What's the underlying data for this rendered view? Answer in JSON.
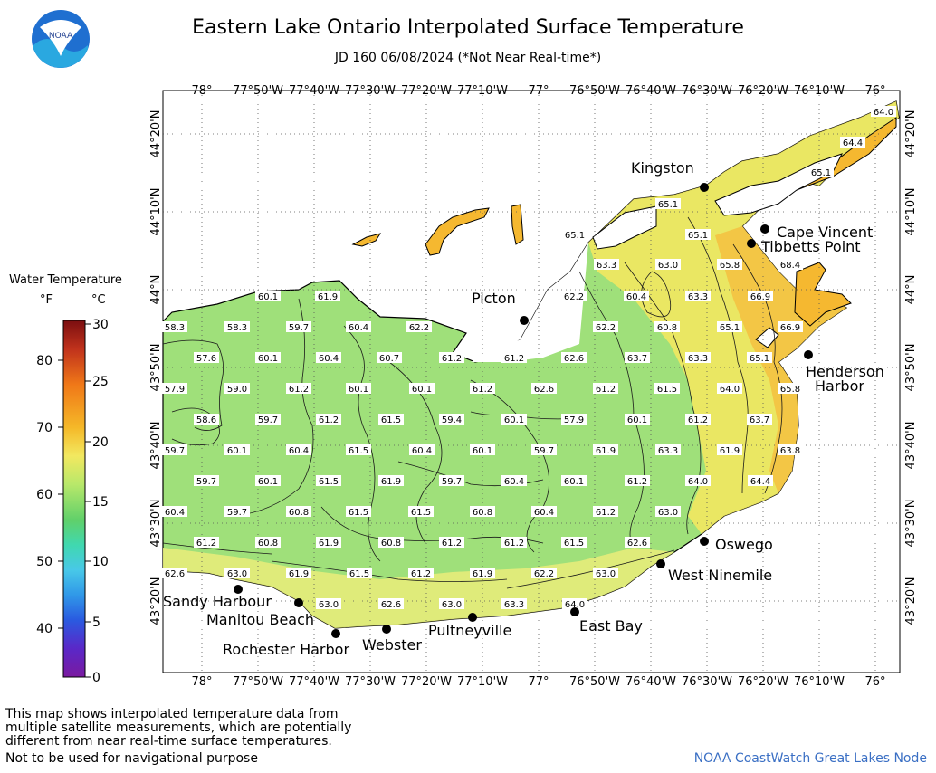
{
  "header": {
    "title": "Eastern Lake Ontario Interpolated Surface Temperature",
    "subtitle": "JD 160 06/08/2024 (*Not Near Real-time*)",
    "logo_text": "NOAA"
  },
  "legend": {
    "title": "Water Temperature",
    "unit_f": "°F",
    "unit_c": "°C",
    "f_ticks": [
      "80",
      "70",
      "60",
      "50",
      "40"
    ],
    "c_ticks": [
      "30",
      "25",
      "20",
      "15",
      "10",
      "5",
      "0"
    ],
    "colors": [
      "#7b0e10",
      "#c0321c",
      "#f07818",
      "#f5b828",
      "#f2e860",
      "#b8e86a",
      "#60d06a",
      "#40d8b0",
      "#48c8e8",
      "#3098e8",
      "#2a5ae0",
      "#5a28c8",
      "#7a1aa0"
    ]
  },
  "axes": {
    "lon_labels": [
      "78°",
      "77°50'W",
      "77°40'W",
      "77°30'W",
      "77°20'W",
      "77°10'W",
      "77°",
      "76°50'W",
      "76°40'W",
      "76°30'W",
      "76°20'W",
      "76°10'W",
      "76°"
    ],
    "lat_labels": [
      "44°20'N",
      "44°10'N",
      "44°N",
      "43°50'N",
      "43°40'N",
      "43°30'N",
      "43°20'N"
    ]
  },
  "cities": [
    {
      "name": "Kingston"
    },
    {
      "name": "Cape Vincent"
    },
    {
      "name": "Tibbetts Point"
    },
    {
      "name": "Picton"
    },
    {
      "name": "Henderson Harbor"
    },
    {
      "name": "Oswego"
    },
    {
      "name": "West Ninemile"
    },
    {
      "name": "Sandy Harbour"
    },
    {
      "name": "Manitou Beach"
    },
    {
      "name": "Rochester Harbor"
    },
    {
      "name": "Webster"
    },
    {
      "name": "Pultneyville"
    },
    {
      "name": "East Bay"
    }
  ],
  "temperature_labels": [
    "64.0",
    "64.4",
    "65.1",
    "65.1",
    "65.1",
    "65.1",
    "63.3",
    "63.0",
    "65.8",
    "68.4",
    "60.1",
    "61.9",
    "62.2",
    "60.4",
    "63.3",
    "66.9",
    "58.3",
    "58.3",
    "59.7",
    "60.4",
    "62.2",
    "62.2",
    "60.8",
    "65.1",
    "66.9",
    "57.6",
    "60.1",
    "60.4",
    "60.7",
    "61.2",
    "61.2",
    "62.6",
    "63.7",
    "63.3",
    "65.1",
    "57.9",
    "59.0",
    "61.2",
    "60.1",
    "60.1",
    "61.2",
    "62.6",
    "61.2",
    "61.5",
    "64.0",
    "65.8",
    "58.6",
    "59.7",
    "61.2",
    "61.5",
    "59.4",
    "60.1",
    "57.9",
    "60.1",
    "61.2",
    "63.7",
    "59.7",
    "60.1",
    "60.4",
    "61.5",
    "60.4",
    "60.1",
    "59.7",
    "61.9",
    "63.3",
    "61.9",
    "63.8",
    "59.7",
    "60.1",
    "61.5",
    "61.9",
    "59.7",
    "60.4",
    "60.1",
    "61.2",
    "64.0",
    "64.4",
    "60.4",
    "59.7",
    "60.8",
    "61.5",
    "61.5",
    "60.8",
    "60.4",
    "61.2",
    "63.0",
    "61.2",
    "60.8",
    "61.9",
    "60.8",
    "61.2",
    "61.2",
    "61.5",
    "62.6",
    "62.6",
    "63.0",
    "61.9",
    "61.5",
    "61.2",
    "61.9",
    "62.2",
    "63.0",
    "63.0",
    "62.6",
    "63.0",
    "63.3",
    "64.0"
  ],
  "footer": {
    "note_lines": [
      "This map shows interpolated temperature data from",
      "multiple satellite measurements, which are potentially",
      "different from near real-time surface temperatures."
    ],
    "warning": "Not to be used for navigational purpose",
    "credit": "NOAA CoastWatch Great Lakes Node"
  }
}
